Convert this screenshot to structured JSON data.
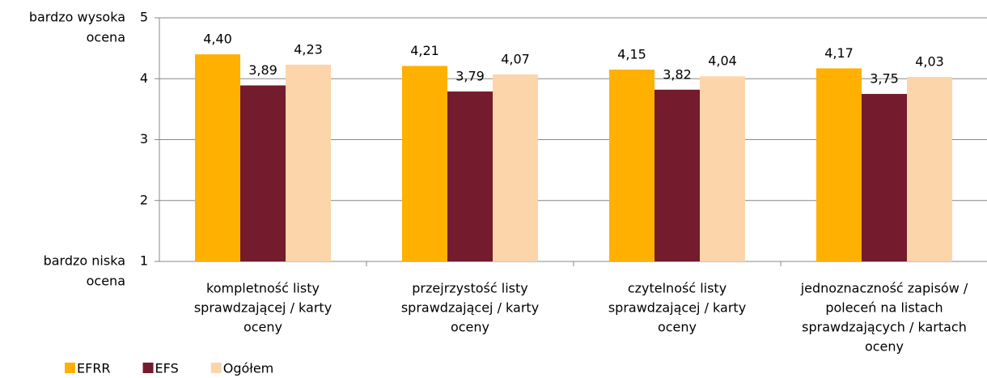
{
  "chart_data": {
    "type": "bar",
    "categories": [
      [
        "kompletność listy",
        "sprawdzającej / karty",
        "oceny"
      ],
      [
        "przejrzystość listy",
        "sprawdzającej / karty",
        "oceny"
      ],
      [
        "czytelność listy",
        "sprawdzającej / karty",
        "oceny"
      ],
      [
        "jednoznaczność zapisów /",
        "poleceń na listach",
        "sprawdzających / kartach",
        "oceny"
      ]
    ],
    "series": [
      {
        "name": "EFRR",
        "color": "#ffb000",
        "values": [
          4.4,
          4.21,
          4.15,
          4.17
        ],
        "value_labels": [
          "4,40",
          "4,21",
          "4,15",
          "4,17"
        ]
      },
      {
        "name": "EFS",
        "color": "#741b2d",
        "values": [
          3.89,
          3.79,
          3.82,
          3.75
        ],
        "value_labels": [
          "3,89",
          "3,79",
          "3,82",
          "3,75"
        ]
      },
      {
        "name": "Ogółem",
        "color": "#fdd5aa",
        "values": [
          4.23,
          4.07,
          4.04,
          4.03
        ],
        "value_labels": [
          "4,23",
          "4,07",
          "4,04",
          "4,03"
        ]
      }
    ],
    "ylim": [
      1,
      5
    ],
    "yticks": [
      1,
      2,
      3,
      4,
      5
    ],
    "grid": true,
    "legend": "bottom-left",
    "annotations": [
      {
        "text": [
          "bardzo wysoka",
          "ocena"
        ],
        "y": 5
      },
      {
        "text": [
          "bardzo niska",
          "ocena"
        ],
        "y": 1
      }
    ]
  }
}
